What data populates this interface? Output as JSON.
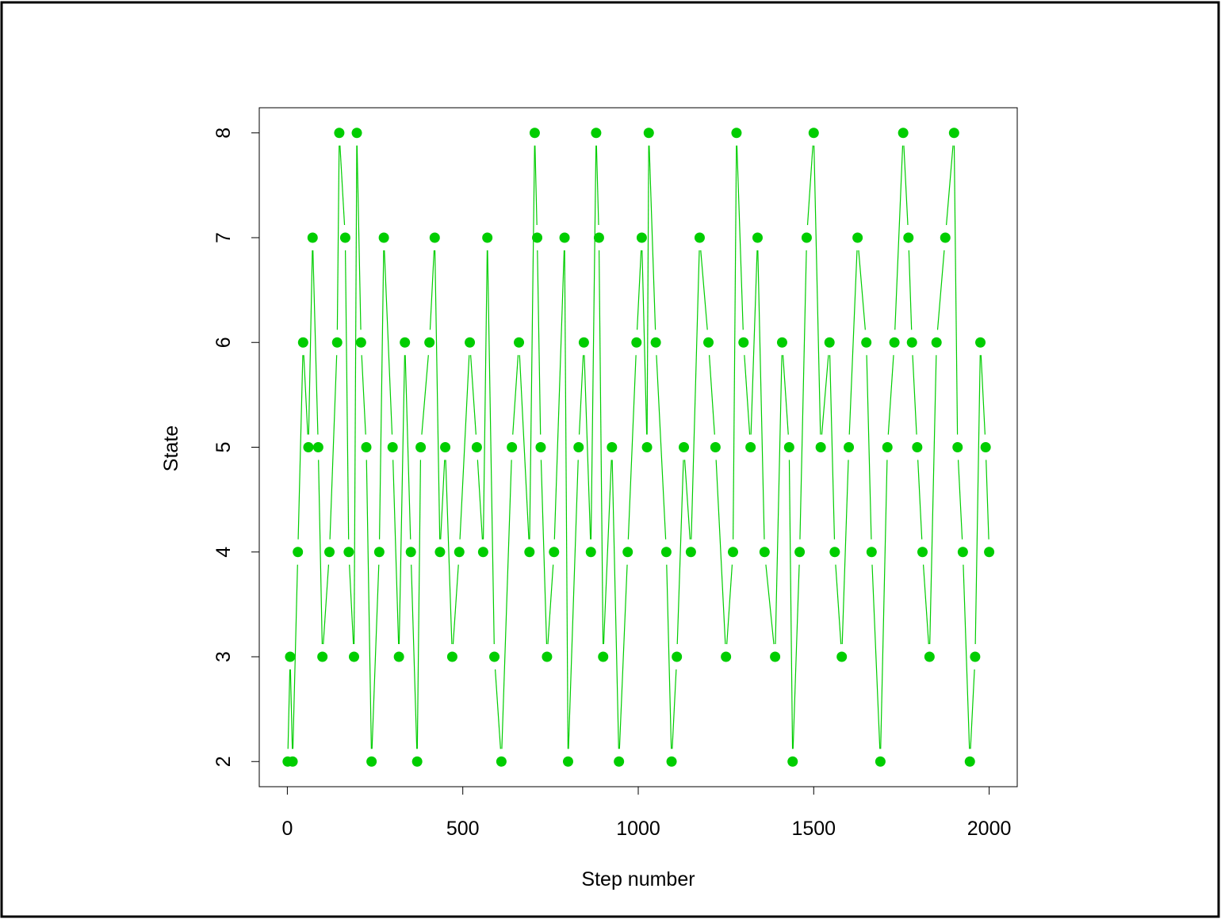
{
  "chart_data": {
    "type": "line",
    "title": "",
    "xlabel": "Step number",
    "ylabel": "State",
    "xlim": [
      -80,
      2080
    ],
    "ylim": [
      1.76,
      8.24
    ],
    "x_ticks": [
      0,
      500,
      1000,
      1500,
      2000
    ],
    "x_tick_labels": [
      "0",
      "500",
      "1000",
      "1500",
      "2000"
    ],
    "y_ticks": [
      2,
      3,
      4,
      5,
      6,
      7,
      8
    ],
    "y_tick_labels": [
      "2",
      "3",
      "4",
      "5",
      "6",
      "7",
      "8"
    ],
    "grid": false,
    "legend": "none",
    "plot_type": "b",
    "n_steps": 2000,
    "series": [
      {
        "color": "#00CD00",
        "x": [
          1,
          8,
          15,
          30,
          45,
          60,
          72,
          88,
          100,
          120,
          142,
          148,
          165,
          175,
          190,
          198,
          210,
          225,
          240,
          262,
          275,
          300,
          318,
          335,
          352,
          370,
          380,
          405,
          420,
          435,
          450,
          470,
          490,
          520,
          540,
          558,
          570,
          590,
          610,
          640,
          660,
          690,
          705,
          712,
          722,
          740,
          760,
          790,
          800,
          830,
          845,
          865,
          880,
          888,
          900,
          925,
          945,
          970,
          995,
          1010,
          1025,
          1030,
          1050,
          1080,
          1095,
          1110,
          1130,
          1150,
          1175,
          1200,
          1220,
          1250,
          1270,
          1280,
          1300,
          1320,
          1340,
          1360,
          1390,
          1410,
          1430,
          1440,
          1460,
          1480,
          1500,
          1520,
          1545,
          1560,
          1580,
          1600,
          1625,
          1650,
          1665,
          1690,
          1710,
          1730,
          1755,
          1770,
          1780,
          1795,
          1810,
          1830,
          1850,
          1875,
          1900,
          1910,
          1925,
          1945,
          1960,
          1975,
          1990,
          2000
        ],
        "y": [
          2,
          3,
          2,
          4,
          6,
          5,
          7,
          5,
          3,
          4,
          6,
          8,
          7,
          4,
          3,
          8,
          6,
          5,
          2,
          4,
          7,
          5,
          3,
          6,
          4,
          2,
          5,
          6,
          7,
          4,
          5,
          3,
          4,
          6,
          5,
          4,
          7,
          3,
          2,
          5,
          6,
          4,
          8,
          7,
          5,
          3,
          4,
          7,
          2,
          5,
          6,
          4,
          8,
          7,
          3,
          5,
          2,
          4,
          6,
          7,
          5,
          8,
          6,
          4,
          2,
          3,
          5,
          4,
          7,
          6,
          5,
          3,
          4,
          8,
          6,
          5,
          7,
          4,
          3,
          6,
          5,
          2,
          4,
          7,
          8,
          5,
          6,
          4,
          3,
          5,
          7,
          6,
          4,
          2,
          5,
          6,
          8,
          7,
          6,
          5,
          4,
          3,
          6,
          7,
          8,
          5,
          4,
          2,
          3,
          6,
          5,
          4
        ]
      }
    ]
  }
}
